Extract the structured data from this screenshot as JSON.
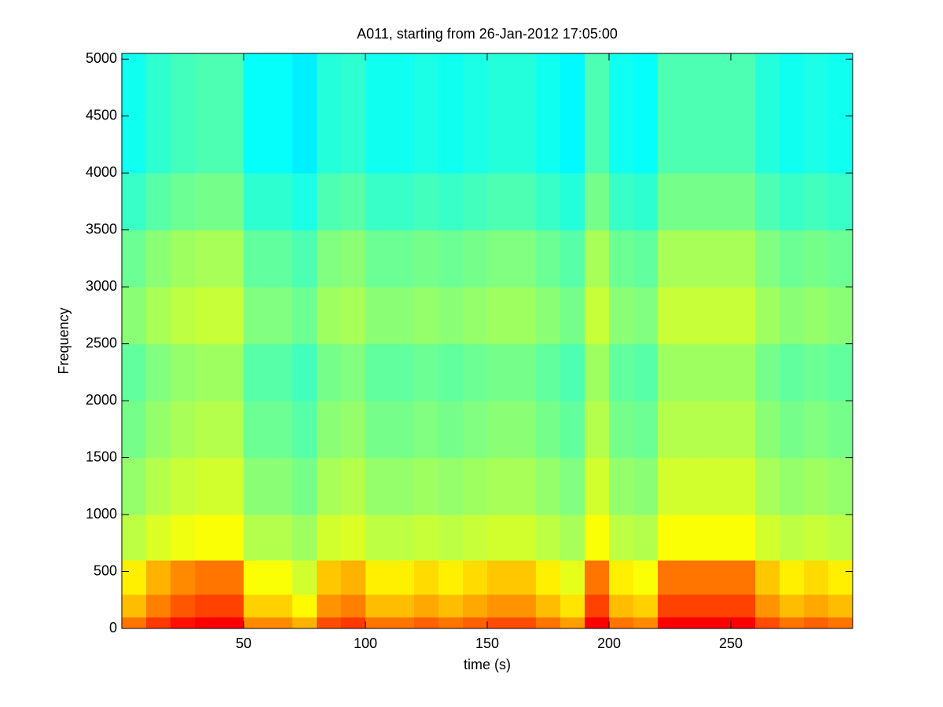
{
  "chart_data": {
    "type": "spectrogram",
    "title": "A011, starting from 26-Jan-2012 17:05:00",
    "xlabel": "time (s)",
    "ylabel": "Frequency",
    "xlim": [
      0,
      300
    ],
    "xticks": [
      50,
      100,
      150,
      200,
      250
    ],
    "ylim": [
      0,
      5050
    ],
    "yticks": [
      0,
      500,
      1000,
      1500,
      2000,
      2500,
      3000,
      3500,
      4000,
      4500,
      5000
    ],
    "colormap": "jet",
    "clim": [
      0,
      1
    ],
    "xbins": [
      0,
      10,
      20,
      30,
      40,
      50,
      60,
      70,
      80,
      90,
      100,
      110,
      120,
      130,
      140,
      150,
      160,
      170,
      180,
      190,
      200,
      210,
      220,
      230,
      240,
      250,
      260,
      270,
      280,
      290,
      300
    ],
    "ybins": [
      0,
      100,
      300,
      600,
      1000,
      1500,
      2000,
      2500,
      3000,
      3500,
      4000,
      5050
    ],
    "z": [
      [
        0.76,
        0.82,
        0.86,
        0.88,
        0.88,
        0.74,
        0.74,
        0.7,
        0.8,
        0.82,
        0.76,
        0.76,
        0.78,
        0.76,
        0.78,
        0.8,
        0.8,
        0.76,
        0.72,
        0.88,
        0.76,
        0.74,
        0.88,
        0.88,
        0.88,
        0.88,
        0.8,
        0.76,
        0.78,
        0.76
      ],
      [
        0.69,
        0.75,
        0.79,
        0.81,
        0.81,
        0.67,
        0.67,
        0.63,
        0.73,
        0.75,
        0.69,
        0.69,
        0.71,
        0.69,
        0.71,
        0.73,
        0.73,
        0.69,
        0.65,
        0.81,
        0.69,
        0.67,
        0.81,
        0.81,
        0.81,
        0.81,
        0.73,
        0.69,
        0.71,
        0.69
      ],
      [
        0.64,
        0.7,
        0.74,
        0.76,
        0.76,
        0.62,
        0.62,
        0.58,
        0.68,
        0.7,
        0.64,
        0.64,
        0.66,
        0.64,
        0.66,
        0.68,
        0.68,
        0.64,
        0.6,
        0.76,
        0.64,
        0.62,
        0.76,
        0.76,
        0.76,
        0.76,
        0.68,
        0.64,
        0.66,
        0.64
      ],
      [
        0.56,
        0.59,
        0.61,
        0.62,
        0.62,
        0.55,
        0.55,
        0.53,
        0.58,
        0.59,
        0.56,
        0.56,
        0.57,
        0.56,
        0.57,
        0.58,
        0.58,
        0.56,
        0.54,
        0.62,
        0.56,
        0.55,
        0.62,
        0.62,
        0.62,
        0.62,
        0.58,
        0.56,
        0.57,
        0.56
      ],
      [
        0.52,
        0.55,
        0.57,
        0.58,
        0.58,
        0.51,
        0.51,
        0.49,
        0.54,
        0.55,
        0.52,
        0.52,
        0.53,
        0.52,
        0.53,
        0.54,
        0.54,
        0.52,
        0.5,
        0.58,
        0.52,
        0.51,
        0.58,
        0.58,
        0.58,
        0.58,
        0.54,
        0.52,
        0.53,
        0.52
      ],
      [
        0.49,
        0.52,
        0.54,
        0.55,
        0.55,
        0.48,
        0.48,
        0.46,
        0.51,
        0.52,
        0.49,
        0.49,
        0.5,
        0.49,
        0.5,
        0.51,
        0.51,
        0.49,
        0.47,
        0.55,
        0.49,
        0.48,
        0.55,
        0.55,
        0.55,
        0.55,
        0.51,
        0.49,
        0.5,
        0.49
      ],
      [
        0.47,
        0.5,
        0.52,
        0.53,
        0.53,
        0.46,
        0.46,
        0.44,
        0.49,
        0.5,
        0.47,
        0.47,
        0.48,
        0.47,
        0.48,
        0.49,
        0.49,
        0.47,
        0.45,
        0.53,
        0.47,
        0.46,
        0.53,
        0.53,
        0.53,
        0.53,
        0.49,
        0.47,
        0.48,
        0.47
      ],
      [
        0.51,
        0.54,
        0.56,
        0.57,
        0.57,
        0.5,
        0.5,
        0.48,
        0.53,
        0.54,
        0.51,
        0.51,
        0.52,
        0.51,
        0.52,
        0.53,
        0.53,
        0.51,
        0.49,
        0.57,
        0.51,
        0.5,
        0.57,
        0.57,
        0.57,
        0.57,
        0.53,
        0.51,
        0.52,
        0.51
      ],
      [
        0.48,
        0.51,
        0.53,
        0.54,
        0.54,
        0.47,
        0.47,
        0.45,
        0.5,
        0.51,
        0.48,
        0.48,
        0.49,
        0.48,
        0.49,
        0.5,
        0.5,
        0.48,
        0.46,
        0.54,
        0.48,
        0.47,
        0.54,
        0.54,
        0.54,
        0.54,
        0.5,
        0.48,
        0.49,
        0.48
      ],
      [
        0.43,
        0.46,
        0.48,
        0.49,
        0.49,
        0.42,
        0.42,
        0.4,
        0.45,
        0.46,
        0.43,
        0.43,
        0.44,
        0.43,
        0.44,
        0.45,
        0.45,
        0.43,
        0.41,
        0.49,
        0.43,
        0.42,
        0.49,
        0.49,
        0.49,
        0.49,
        0.45,
        0.43,
        0.44,
        0.43
      ],
      [
        0.39,
        0.42,
        0.44,
        0.45,
        0.45,
        0.38,
        0.38,
        0.36,
        0.41,
        0.42,
        0.39,
        0.39,
        0.4,
        0.39,
        0.4,
        0.41,
        0.41,
        0.39,
        0.37,
        0.45,
        0.39,
        0.38,
        0.45,
        0.45,
        0.45,
        0.45,
        0.41,
        0.39,
        0.4,
        0.39
      ]
    ]
  }
}
